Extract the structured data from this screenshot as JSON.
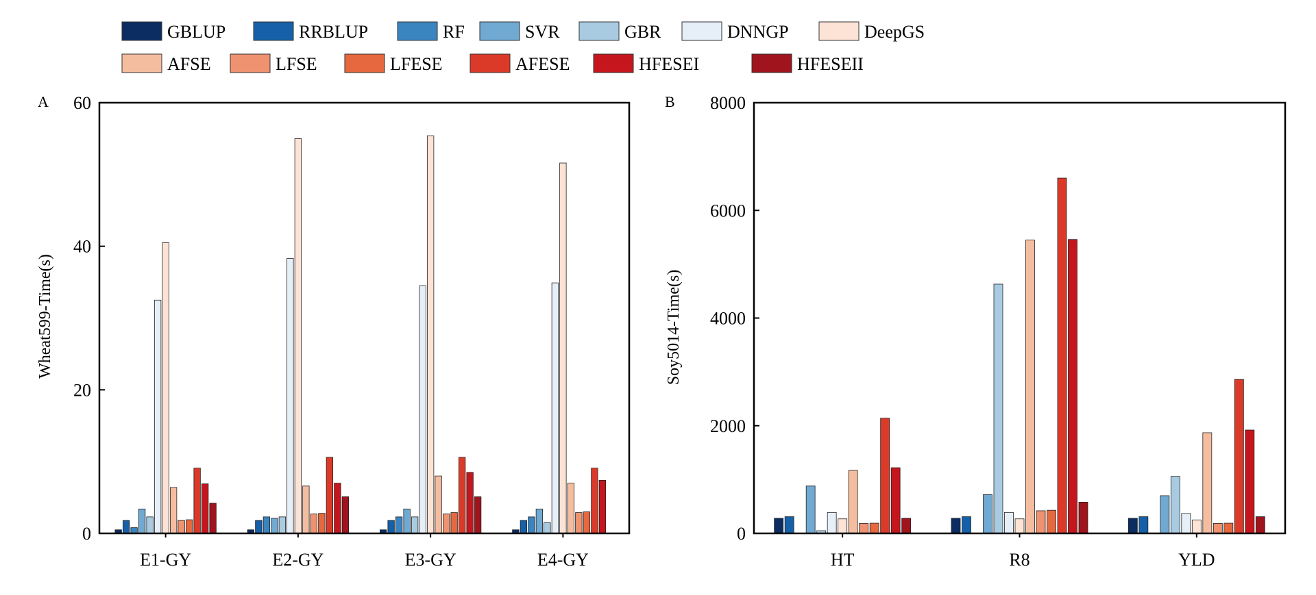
{
  "legend": {
    "row1": [
      "GBLUP",
      "RRBLUP",
      "RF",
      "SVR",
      "GBR",
      "DNNGP",
      "DeepGS"
    ],
    "row2": [
      "AFSE",
      "LFSE",
      "LFESE",
      "AFESE",
      "HFESEI",
      "HFESEII"
    ]
  },
  "series_colors": {
    "GBLUP": "#0b2d62",
    "RRBLUP": "#1560a8",
    "RF": "#3a84bf",
    "SVR": "#70a9d2",
    "GBR": "#a8cbe2",
    "DNNGP": "#e6eff8",
    "DeepGS": "#fde3d5",
    "AFSE": "#f5bda0",
    "LFSE": "#ef926f",
    "LFESE": "#e6683f",
    "AFESE": "#dc3a28",
    "HFESEI": "#c5161e",
    "HFESEII": "#a0141d"
  },
  "chart_data": [
    {
      "panel_label": "A",
      "type": "bar",
      "ylabel": "Wheat599-Time(s)",
      "xlabel": "",
      "ylim": [
        0,
        60
      ],
      "yticks": [
        0,
        20,
        40,
        60
      ],
      "categories": [
        "E1-GY",
        "E2-GY",
        "E3-GY",
        "E4-GY"
      ],
      "series": [
        {
          "name": "GBLUP",
          "values": [
            0.5,
            0.5,
            0.5,
            0.5
          ]
        },
        {
          "name": "RRBLUP",
          "values": [
            1.8,
            1.8,
            1.8,
            1.8
          ]
        },
        {
          "name": "RF",
          "values": [
            0.8,
            2.3,
            2.3,
            2.3
          ]
        },
        {
          "name": "SVR",
          "values": [
            3.4,
            2.1,
            3.4,
            3.4
          ]
        },
        {
          "name": "GBR",
          "values": [
            2.3,
            2.3,
            2.3,
            1.5
          ]
        },
        {
          "name": "DNNGP",
          "values": [
            32.5,
            38.3,
            34.5,
            34.9
          ]
        },
        {
          "name": "DeepGS",
          "values": [
            40.5,
            55.0,
            55.4,
            51.6
          ]
        },
        {
          "name": "AFSE",
          "values": [
            6.4,
            6.6,
            8.0,
            7.0
          ]
        },
        {
          "name": "LFSE",
          "values": [
            1.8,
            2.7,
            2.7,
            2.9
          ]
        },
        {
          "name": "LFESE",
          "values": [
            1.9,
            2.8,
            2.9,
            3.0
          ]
        },
        {
          "name": "AFESE",
          "values": [
            9.1,
            10.6,
            10.6,
            9.1
          ]
        },
        {
          "name": "HFESEI",
          "values": [
            6.9,
            7.0,
            8.5,
            7.4
          ]
        },
        {
          "name": "HFESEII",
          "values": [
            4.2,
            5.1,
            5.1,
            0
          ]
        }
      ]
    },
    {
      "panel_label": "B",
      "type": "bar",
      "ylabel": "Soy5014-Time(s)",
      "xlabel": "",
      "ylim": [
        0,
        8000
      ],
      "yticks": [
        0,
        2000,
        4000,
        6000,
        8000
      ],
      "categories": [
        "HT",
        "R8",
        "YLD"
      ],
      "series": [
        {
          "name": "GBLUP",
          "values": [
            280,
            280,
            280
          ]
        },
        {
          "name": "RRBLUP",
          "values": [
            310,
            310,
            310
          ]
        },
        {
          "name": "RF",
          "values": [
            0,
            0,
            0
          ]
        },
        {
          "name": "SVR",
          "values": [
            880,
            720,
            700
          ]
        },
        {
          "name": "GBR",
          "values": [
            50,
            4630,
            1060
          ]
        },
        {
          "name": "DNNGP",
          "values": [
            390,
            390,
            370
          ]
        },
        {
          "name": "DeepGS",
          "values": [
            270,
            270,
            250
          ]
        },
        {
          "name": "AFSE",
          "values": [
            1170,
            5450,
            1870
          ]
        },
        {
          "name": "LFSE",
          "values": [
            185,
            420,
            185
          ]
        },
        {
          "name": "LFESE",
          "values": [
            190,
            430,
            190
          ]
        },
        {
          "name": "AFESE",
          "values": [
            2140,
            6600,
            2860
          ]
        },
        {
          "name": "HFESEI",
          "values": [
            1220,
            5460,
            1920
          ]
        },
        {
          "name": "HFESEII",
          "values": [
            280,
            580,
            310
          ]
        }
      ]
    }
  ]
}
